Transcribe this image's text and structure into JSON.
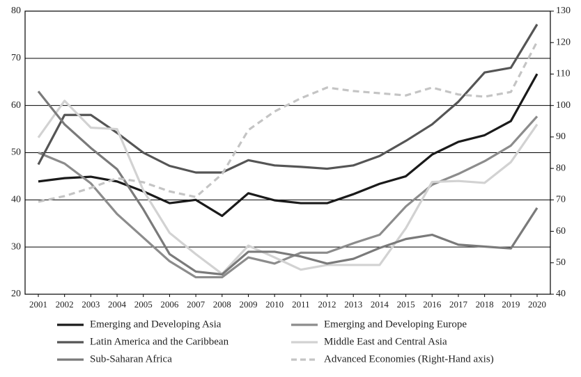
{
  "chart_data": {
    "type": "line",
    "categories": [
      "2001",
      "2002",
      "2003",
      "2004",
      "2005",
      "2006",
      "2007",
      "2008",
      "2009",
      "2010",
      "2011",
      "2012",
      "2013",
      "2014",
      "2015",
      "2016",
      "2017",
      "2018",
      "2019",
      "2020"
    ],
    "ylim": [
      20,
      80
    ],
    "yticks": [
      20,
      30,
      40,
      50,
      60,
      70,
      80
    ],
    "y2lim": [
      40,
      130
    ],
    "y2ticks": [
      40,
      50,
      60,
      70,
      80,
      90,
      100,
      110,
      120,
      130
    ],
    "grid": true,
    "series": [
      {
        "name": "Emerging and Developing Asia",
        "color": "#1a1a1a",
        "values": [
          43.9,
          44.6,
          44.9,
          43.9,
          41.8,
          39.3,
          40.0,
          36.6,
          41.4,
          39.9,
          39.3,
          39.3,
          41.2,
          43.4,
          45.0,
          49.6,
          52.3,
          53.7,
          56.7,
          66.7
        ]
      },
      {
        "name": "Emerging and Developing Europe",
        "color": "#8c8c8c",
        "values": [
          50.0,
          47.7,
          43.5,
          37.0,
          32.0,
          27.0,
          23.6,
          23.6,
          27.8,
          26.5,
          28.8,
          28.8,
          30.8,
          32.6,
          38.6,
          43.2,
          45.5,
          48.2,
          51.5,
          57.7
        ]
      },
      {
        "name": "Latin America and the Caribbean",
        "color": "#555555",
        "values": [
          47.5,
          58.0,
          58.0,
          54.2,
          50.0,
          47.2,
          45.8,
          45.8,
          48.4,
          47.3,
          47.0,
          46.6,
          47.3,
          49.3,
          52.5,
          56.0,
          60.8,
          67.0,
          68.0,
          77.2
        ]
      },
      {
        "name": "Middle East and Central Asia",
        "color": "#d2d2d2",
        "values": [
          53.2,
          61.0,
          55.3,
          55.0,
          42.0,
          33.0,
          28.5,
          24.3,
          30.3,
          27.8,
          25.2,
          26.2,
          26.2,
          26.2,
          34.0,
          43.8,
          44.0,
          43.6,
          48.0,
          56.0
        ]
      },
      {
        "name": "Sub-Saharan Africa",
        "color": "#7a7a7a",
        "values": [
          63.0,
          56.0,
          51.0,
          46.5,
          38.0,
          28.5,
          24.8,
          24.2,
          29.0,
          29.0,
          28.0,
          26.5,
          27.5,
          29.8,
          31.7,
          32.6,
          30.5,
          30.1,
          29.7,
          38.3
        ]
      },
      {
        "name": "Advanced Economies (Right-Hand axis)",
        "color": "#c4c4c4",
        "dashed": true,
        "axis": "y2",
        "values": [
          69.4,
          71.2,
          73.8,
          76.9,
          75.6,
          72.7,
          70.9,
          78.2,
          92.2,
          98.1,
          102.3,
          105.7,
          104.6,
          103.9,
          103.2,
          105.7,
          103.5,
          102.8,
          104.3,
          120.3
        ]
      }
    ]
  }
}
